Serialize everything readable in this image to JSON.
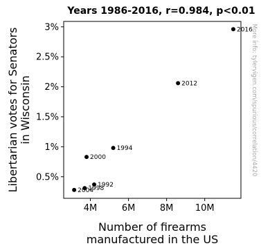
{
  "chart_data": {
    "type": "scatter",
    "title": "Years 1986-2016, r=0.984, p<0.01",
    "xlabel": [
      "Number of firearms",
      "manufactured in the US"
    ],
    "ylabel": [
      "Libertarian votes for Senators",
      "in Wisconsin"
    ],
    "xlim": [
      2600000,
      11900000
    ],
    "ylim": [
      0.0014,
      0.0309
    ],
    "x_ticks": [
      {
        "value": 4000000,
        "label": "4M"
      },
      {
        "value": 6000000,
        "label": "6M"
      },
      {
        "value": 8000000,
        "label": "8M"
      },
      {
        "value": 10000000,
        "label": "10M"
      }
    ],
    "y_ticks": [
      {
        "value": 0.005,
        "label": "0.5%"
      },
      {
        "value": 0.01,
        "label": "1%"
      },
      {
        "value": 0.015,
        "label": "1.5%"
      },
      {
        "value": 0.02,
        "label": "2%"
      },
      {
        "value": 0.025,
        "label": "2.5%"
      },
      {
        "value": 0.03,
        "label": "3%"
      }
    ],
    "points": [
      {
        "label": "2004",
        "x": 3150000,
        "y": 0.0028
      },
      {
        "label": "1998",
        "x": 3700000,
        "y": 0.0031
      },
      {
        "label": "1992",
        "x": 4200000,
        "y": 0.0037
      },
      {
        "label": "2000",
        "x": 3800000,
        "y": 0.0083
      },
      {
        "label": "1994",
        "x": 5200000,
        "y": 0.0098
      },
      {
        "label": "2012",
        "x": 8600000,
        "y": 0.0206
      },
      {
        "label": "2016",
        "x": 11500000,
        "y": 0.0296
      }
    ],
    "point_color": "#000000",
    "grid": false
  },
  "watermark": "More info: tylervigen.com/spurious/correlation/4420"
}
